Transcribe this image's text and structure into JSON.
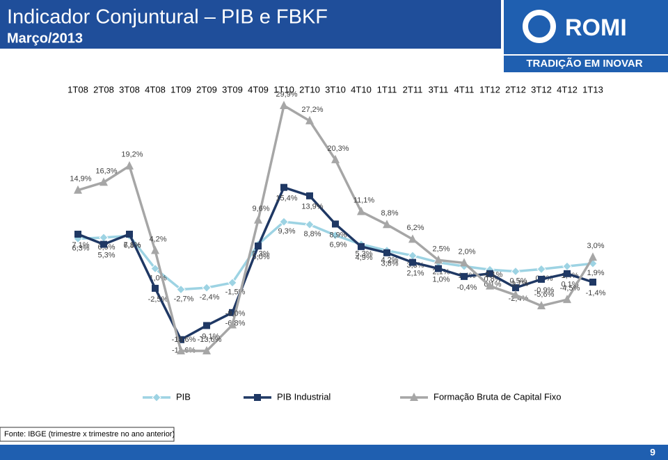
{
  "header": {
    "title": "Indicador Conjuntural – PIB e FBKF",
    "subtitle": "Março/2013",
    "brand": "ROMI",
    "tagline": "TRADIÇÃO EM INOVAR"
  },
  "chart_data": {
    "type": "line",
    "categories": [
      "1T08",
      "2T08",
      "3T08",
      "4T08",
      "1T09",
      "2T09",
      "3T09",
      "4T09",
      "1T10",
      "2T10",
      "3T10",
      "4T10",
      "1T11",
      "2T11",
      "3T11",
      "4T11",
      "1T12",
      "2T12",
      "3T12",
      "4T12",
      "1T13"
    ],
    "series": [
      {
        "name": "PIB",
        "color": "#9dd3e3",
        "marker": "diamond",
        "values": [
          6.3,
          6.5,
          6.8,
          1.0,
          -2.7,
          -2.4,
          -1.5,
          5.3,
          9.3,
          8.8,
          6.9,
          5.3,
          4.2,
          3.3,
          2.1,
          1.4,
          0.8,
          0.5,
          0.9,
          1.4,
          1.9
        ],
        "value_labels": [
          "6,3%",
          "6,5%",
          "6,8%",
          "1,0%",
          "-2,7%",
          "-2,4%",
          "-1,5%",
          "5,3%",
          "9,3%",
          "8,8%",
          "6,9%",
          "5,3%",
          "4,2%",
          "3,3%",
          "2,1%",
          "1,4%",
          "0,8%",
          "0,5%",
          "0,9%",
          "1,4%",
          "1,9%"
        ]
      },
      {
        "name": "PIB Industrial",
        "color": "#1f3864",
        "marker": "square",
        "values": [
          7.1,
          5.3,
          7.1,
          -2.5,
          -11.6,
          -9.1,
          -6.8,
          5.0,
          15.4,
          13.9,
          8.9,
          4.9,
          3.8,
          2.1,
          1.0,
          -0.4,
          0.1,
          -2.4,
          -0.9,
          0.1,
          -1.4
        ],
        "value_labels": [
          "7,1%",
          "5,3%",
          "7,1%",
          "-2,5%",
          "-11,6%",
          "-9,1%",
          "-6,8%",
          "5,0%",
          "15,4%",
          "13,9%",
          "8,9%",
          "4,9%",
          "3,8%",
          "2,1%",
          "1,0%",
          "-0,4%",
          "0,1%",
          "-2,4%",
          "-0,9%",
          "0,1%",
          "-1,4%"
        ]
      },
      {
        "name": "Formação Bruta de Capital Fixo",
        "color": "#a6a6a6",
        "marker": "triangle",
        "values": [
          14.9,
          16.3,
          19.2,
          4.2,
          -13.6,
          -13.6,
          -9.0,
          9.6,
          29.9,
          27.2,
          20.3,
          11.1,
          8.8,
          6.2,
          2.5,
          2.0,
          -2.1,
          -3.7,
          -5.6,
          -4.5,
          3.0
        ],
        "value_labels": [
          "14,9%",
          "16,3%",
          "19,2%",
          "4,2%",
          "-13,6%",
          "-13,6%",
          "-9,0%",
          "9,6%",
          "29,9%",
          "27,2%",
          "20,3%",
          "11,1%",
          "8,8%",
          "6,2%",
          "2,5%",
          "2,0%",
          "-2,1%",
          "-3,7%",
          "-5,6%",
          "-4,5%",
          "3,0%"
        ]
      }
    ]
  },
  "footer": {
    "source": "Fonte: IBGE (trimestre x trimestre no ano anterior)",
    "page": "9"
  }
}
